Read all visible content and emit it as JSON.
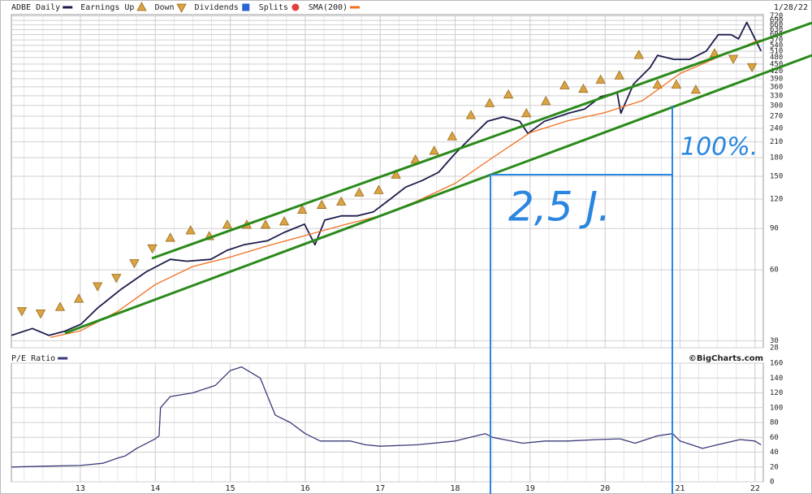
{
  "chart_data": [
    {
      "type": "line",
      "log": true,
      "date_label": "1/28/22",
      "xlim": [
        2012.08,
        2022.11
      ],
      "ylim": [
        28,
        730
      ],
      "xticks": [
        2013,
        2014,
        2015,
        2016,
        2017,
        2018,
        2019,
        2020,
        2021,
        2022
      ],
      "yticks": [
        28,
        30,
        60,
        90,
        120,
        150,
        180,
        210,
        240,
        270,
        300,
        330,
        360,
        390,
        420,
        450,
        480,
        510,
        540,
        570,
        600,
        630,
        660,
        690,
        720
      ],
      "grid": true,
      "annotations": [
        {
          "text": "100%."
        },
        {
          "text": "2,5 J."
        }
      ],
      "series": [
        {
          "name": "ADBE Daily",
          "style": "line",
          "color": "#1c1c4c",
          "x": [
            2012.08,
            2012.36,
            2012.58,
            2012.79,
            2013.01,
            2013.23,
            2013.55,
            2013.88,
            2014.2,
            2014.42,
            2014.74,
            2014.96,
            2015.18,
            2015.5,
            2015.72,
            2015.99,
            2016.13,
            2016.26,
            2016.48,
            2016.69,
            2016.91,
            2017.13,
            2017.34,
            2017.56,
            2017.78,
            2017.99,
            2018.21,
            2018.43,
            2018.64,
            2018.86,
            2018.97,
            2019.19,
            2019.51,
            2019.73,
            2019.94,
            2020.16,
            2020.21,
            2020.38,
            2020.6,
            2020.7,
            2020.92,
            2021.13,
            2021.35,
            2021.51,
            2021.68,
            2021.78,
            2021.89,
            2022.0,
            2022.08
          ],
          "values": [
            31.6,
            33.8,
            31.6,
            32.9,
            35.3,
            41.3,
            49.8,
            58.9,
            66.5,
            65.3,
            66.5,
            72.7,
            76.7,
            79.9,
            86.6,
            93.9,
            76.7,
            97.7,
            101.8,
            101.8,
            105.9,
            119.6,
            134.9,
            143.9,
            156,
            186,
            219,
            257,
            268,
            257,
            228,
            257,
            278,
            290,
            327,
            341,
            278,
            370,
            435,
            490,
            471,
            471,
            511,
            600,
            600,
            576,
            677,
            576,
            511
          ]
        },
        {
          "name": "Earnings Up",
          "style": "up",
          "color": "#d9a441",
          "x": [
            2012.73,
            2012.98,
            2014.2,
            2014.47,
            2014.72,
            2014.96,
            2015.22,
            2015.47,
            2015.72,
            2015.96,
            2016.22,
            2016.48,
            2016.72,
            2016.98,
            2017.21,
            2017.47,
            2017.72,
            2017.96,
            2018.21,
            2018.46,
            2018.71,
            2018.95,
            2019.21,
            2019.46,
            2019.71,
            2019.94,
            2020.19,
            2020.45,
            2020.7,
            2020.95,
            2021.21,
            2021.46
          ],
          "values": [
            41.6,
            45.1,
            81.9,
            88,
            83.2,
            93.1,
            93.1,
            93.1,
            96.1,
            107.7,
            113,
            116.7,
            127.5,
            130.6,
            152,
            176,
            192,
            221,
            272,
            306,
            333,
            277,
            312,
            364,
            352,
            385,
            401,
            490,
            367,
            367,
            349,
            498
          ]
        },
        {
          "name": "Down",
          "style": "down",
          "color": "#d9a441",
          "x": [
            2012.22,
            2012.47,
            2013.23,
            2013.48,
            2013.72,
            2013.96,
            2021.71,
            2021.96
          ],
          "values": [
            40.2,
            39.3,
            51.3,
            55.7,
            64.3,
            74.3,
            475,
            438
          ]
        },
        {
          "name": "Dividends",
          "style": "square",
          "color": "#2a62d8",
          "x": [],
          "values": []
        },
        {
          "name": "Splits",
          "style": "circle",
          "color": "#e0403a",
          "x": [],
          "values": []
        },
        {
          "name": "SMA(200)",
          "style": "line",
          "color": "#f07020",
          "x": [
            2012.6,
            2013.0,
            2013.5,
            2014.0,
            2014.5,
            2015.0,
            2015.5,
            2016.0,
            2016.5,
            2017.0,
            2017.5,
            2018.0,
            2018.5,
            2019.0,
            2019.5,
            2020.0,
            2020.5,
            2021.0,
            2021.5,
            2022.0,
            2022.08
          ],
          "values": [
            31,
            33,
            40,
            52,
            62,
            68,
            76,
            84,
            93,
            102,
            118,
            140,
            180,
            230,
            258,
            280,
            315,
            410,
            480,
            560,
            570
          ]
        }
      ]
    },
    {
      "type": "line",
      "source": "©BigCharts.com",
      "xlim": [
        2012.08,
        2022.11
      ],
      "ylim": [
        0,
        160
      ],
      "xticks": [
        {
          "value": 2013,
          "label": "13"
        },
        {
          "value": 2014,
          "label": "14"
        },
        {
          "value": 2015,
          "label": "15"
        },
        {
          "value": 2016,
          "label": "16"
        },
        {
          "value": 2017,
          "label": "17"
        },
        {
          "value": 2018,
          "label": "18"
        },
        {
          "value": 2019,
          "label": "19"
        },
        {
          "value": 2020,
          "label": "20"
        },
        {
          "value": 2021,
          "label": "21"
        },
        {
          "value": 2022,
          "label": "22"
        }
      ],
      "yticks": [
        0,
        20,
        40,
        60,
        80,
        100,
        120,
        140,
        160
      ],
      "grid": true,
      "series": [
        {
          "name": "P/E Ratio",
          "style": "line",
          "color": "#3a3a7a",
          "x": [
            2012.08,
            2012.5,
            2013.0,
            2013.3,
            2013.5,
            2013.6,
            2013.75,
            2014.0,
            2014.05,
            2014.07,
            2014.2,
            2014.5,
            2014.8,
            2015.0,
            2015.15,
            2015.4,
            2015.6,
            2015.8,
            2016.0,
            2016.2,
            2016.6,
            2016.8,
            2017.0,
            2017.5,
            2018.0,
            2018.4,
            2018.5,
            2018.9,
            2019.2,
            2019.5,
            2019.9,
            2020.2,
            2020.4,
            2020.7,
            2020.9,
            2021.0,
            2021.3,
            2021.5,
            2021.8,
            2022.0,
            2022.08
          ],
          "values": [
            20,
            21,
            22,
            25,
            32,
            35,
            45,
            58,
            62,
            100,
            115,
            120,
            130,
            150,
            155,
            140,
            90,
            80,
            65,
            55,
            55,
            50,
            48,
            50,
            55,
            65,
            60,
            52,
            55,
            55,
            57,
            58,
            52,
            62,
            65,
            55,
            45,
            50,
            57,
            55,
            50
          ]
        }
      ]
    }
  ]
}
